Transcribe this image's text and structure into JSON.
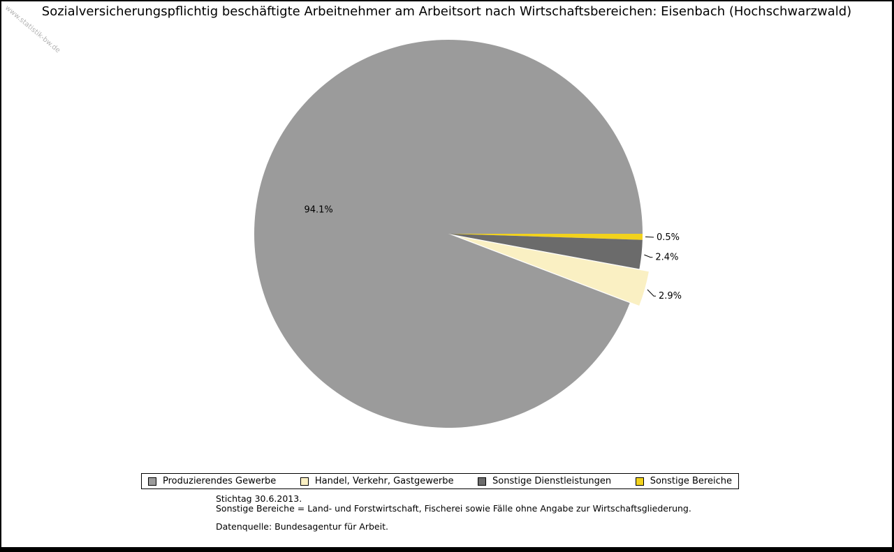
{
  "watermark": "www.statistik-bw.de",
  "chart_data": {
    "type": "pie",
    "title": "Sozialversicherungspflichtig beschäftigte Arbeitnehmer am Arbeitsort nach Wirtschaftsbereichen: Eisenbach (Hochschwarzwald)",
    "unit": "%",
    "start_angle_deg": 0,
    "direction": "clockwise",
    "legend_position": "bottom",
    "slices": [
      {
        "label": "Sonstige Bereiche",
        "value": 0.5,
        "color": "#f2d21c",
        "exploded": false
      },
      {
        "label": "Sonstige Dienstleistungen",
        "value": 2.4,
        "color": "#6b6b6b",
        "exploded": false
      },
      {
        "label": "Handel, Verkehr, Gastgewerbe",
        "value": 2.9,
        "color": "#faf0c3",
        "exploded": true
      },
      {
        "label": "Produzierendes Gewerbe",
        "value": 94.1,
        "color": "#9b9b9b",
        "exploded": false
      }
    ],
    "legend_order": [
      "Produzierendes Gewerbe",
      "Handel, Verkehr, Gastgewerbe",
      "Sonstige Dienstleistungen",
      "Sonstige Bereiche"
    ]
  },
  "footnotes": [
    "Stichtag 30.6.2013.",
    "Sonstige Bereiche = Land- und Forstwirtschaft, Fischerei sowie Fälle ohne Angabe zur Wirtschaftsgliederung.",
    "Datenquelle: Bundesagentur für Arbeit."
  ]
}
